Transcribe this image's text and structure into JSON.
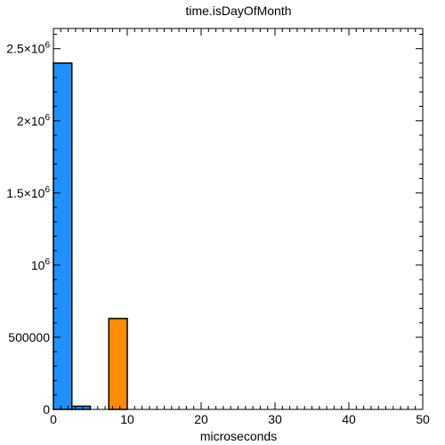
{
  "chart_data": {
    "type": "bar",
    "title": "time.isDayOfMonth",
    "xlabel": "microseconds",
    "ylabel": "",
    "xlim": [
      0,
      50
    ],
    "ylim": [
      0,
      2640000
    ],
    "grid": false,
    "x_ticks": [
      0,
      10,
      20,
      30,
      40,
      50
    ],
    "x_tick_labels": [
      "0",
      "10",
      "20",
      "30",
      "40",
      "50"
    ],
    "y_ticks": [
      0,
      500000,
      1000000,
      1500000,
      2000000,
      2500000
    ],
    "y_tick_labels": [
      {
        "text": "0",
        "base": "",
        "exp": ""
      },
      {
        "text": "500000",
        "base": "",
        "exp": ""
      },
      {
        "text": "",
        "base": "10",
        "exp": "6"
      },
      {
        "text": "",
        "base": "1.5×10",
        "exp": "6"
      },
      {
        "text": "",
        "base": "2×10",
        "exp": "6"
      },
      {
        "text": "",
        "base": "2.5×10",
        "exp": "6"
      }
    ],
    "series": [
      {
        "color": "#1e90ff",
        "bins": [
          {
            "x0": 0,
            "x1": 2.5,
            "value": 2400000
          },
          {
            "x0": 2.5,
            "x1": 5,
            "value": 22000
          }
        ]
      },
      {
        "color": "#ff8c00",
        "bins": [
          {
            "x0": 7.5,
            "x1": 10,
            "value": 630000
          }
        ]
      }
    ]
  }
}
